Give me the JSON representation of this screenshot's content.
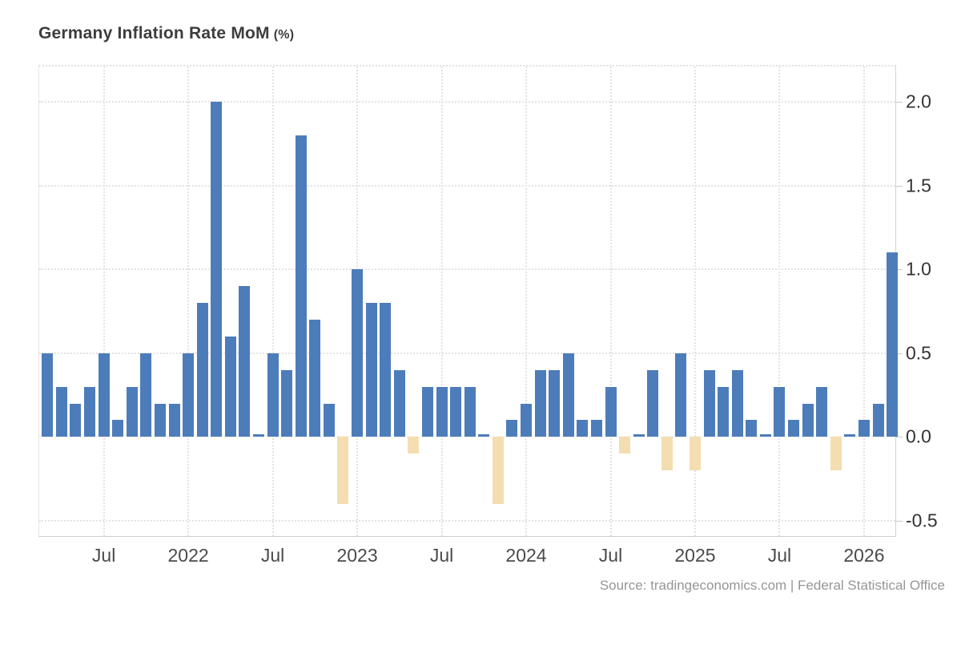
{
  "page": {
    "title": "Germany Inflation Rate MoM",
    "title_unit": "(%)",
    "source": "Source: tradingeconomics.com | Federal Statistical Office"
  },
  "chart_data": {
    "type": "bar",
    "title": "Germany Inflation Rate MoM (%)",
    "xlabel": "",
    "ylabel": "%",
    "legend": "none",
    "grid": "dotted",
    "ylim": [
      -0.605,
      2.21
    ],
    "colors": {
      "positive_bar": "#4d7cba",
      "negative_bar": "#f4ddb0",
      "grid": "#e3e3e3",
      "axis": "#cccccc"
    },
    "x": [
      "2021-03",
      "2021-04",
      "2021-05",
      "2021-06",
      "2021-07",
      "2021-08",
      "2021-09",
      "2021-10",
      "2021-11",
      "2021-12",
      "2022-01",
      "2022-02",
      "2022-03",
      "2022-04",
      "2022-05",
      "2022-06",
      "2022-07",
      "2022-08",
      "2022-09",
      "2022-10",
      "2022-11",
      "2022-12",
      "2023-01",
      "2023-02",
      "2023-03",
      "2023-04",
      "2023-05",
      "2023-06",
      "2023-07",
      "2023-08",
      "2023-09",
      "2023-10",
      "2023-11",
      "2023-12",
      "2024-01",
      "2024-02",
      "2024-03",
      "2024-04",
      "2024-05",
      "2024-06",
      "2024-07",
      "2024-08",
      "2024-09",
      "2024-10",
      "2024-11",
      "2024-12",
      "2025-01",
      "2025-02",
      "2025-03",
      "2025-04",
      "2025-05",
      "2025-06",
      "2025-07",
      "2025-08",
      "2025-09",
      "2025-10",
      "2025-11",
      "2025-12",
      "2026-01",
      "2026-02",
      "2026-03"
    ],
    "values": [
      0.5,
      0.3,
      0.2,
      0.3,
      0.5,
      0.1,
      0.3,
      0.5,
      0.2,
      0.2,
      0.5,
      0.8,
      2.0,
      0.6,
      0.9,
      0.0,
      0.5,
      0.4,
      1.8,
      0.7,
      0.2,
      -0.4,
      1.0,
      0.8,
      0.8,
      0.4,
      -0.1,
      0.3,
      0.3,
      0.3,
      0.3,
      0.0,
      -0.4,
      0.1,
      0.2,
      0.4,
      0.4,
      0.5,
      0.1,
      0.1,
      0.3,
      -0.1,
      0.0,
      0.4,
      -0.2,
      0.5,
      -0.2,
      0.4,
      0.3,
      0.4,
      0.1,
      0.0,
      0.3,
      0.1,
      0.2,
      0.3,
      -0.2,
      0.0,
      0.1,
      0.2,
      1.1
    ],
    "x_ticks": [
      {
        "label": "Jul",
        "m": 4
      },
      {
        "label": "2022",
        "m": 10
      },
      {
        "label": "Jul",
        "m": 16
      },
      {
        "label": "2023",
        "m": 22
      },
      {
        "label": "Jul",
        "m": 28
      },
      {
        "label": "2024",
        "m": 34
      },
      {
        "label": "Jul",
        "m": 40
      },
      {
        "label": "2025",
        "m": 46
      },
      {
        "label": "Jul",
        "m": 52
      },
      {
        "label": "2026",
        "m": 58
      }
    ],
    "y_ticks": [
      {
        "label": "2.0",
        "v": 2.0
      },
      {
        "label": "1.5",
        "v": 1.5
      },
      {
        "label": "1.0",
        "v": 1.0
      },
      {
        "label": "0.5",
        "v": 0.5
      },
      {
        "label": "0.0",
        "v": 0.0
      },
      {
        "label": "-0.5",
        "v": -0.5
      }
    ]
  }
}
